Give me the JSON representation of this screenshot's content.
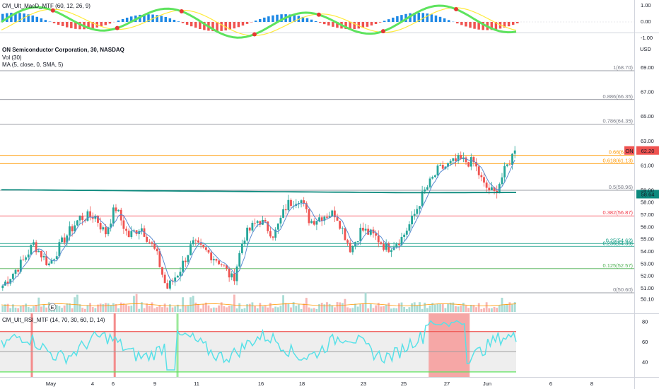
{
  "colors": {
    "up": "#26a69a",
    "down": "#ef5350",
    "ma": "#5b8bd1",
    "ema": "#0d8a7e",
    "rsi": "#58e1e8",
    "macd_fast": "#5ee35e",
    "macd_slow": "#ffeb3b",
    "macd_dot": "#e53935",
    "hist_pos": "#1e88e5",
    "hist_neg": "#ef5350",
    "price_badge": "#ef5350",
    "ema_badge": "#0d8a7e"
  },
  "macd_pane": {
    "legend": "CM_Ult_MacD_MTF (60, 12, 26, 9)",
    "ticks": [
      "1.00",
      "0.00",
      "-1.00"
    ]
  },
  "main_pane": {
    "legend_title": "ON Semiconductor Corporation, 30, NASDAQ",
    "legend_vol": "Vol (30)",
    "legend_ma": "MA (5, close, 0, SMA, 5)",
    "currency": "USD",
    "ticker_badge": "ON",
    "price_badge": "62.20",
    "ema_badge": "58.64",
    "earnings_marker": "E"
  },
  "rsi_pane": {
    "legend": "CM_Ult_RSI_MTF (14, 70, 30, 60, D, 14)",
    "ticks": [
      "80",
      "60",
      "40"
    ]
  },
  "x_axis_labels": [
    "May",
    "4",
    "6",
    "9",
    "11",
    "16",
    "18",
    "23",
    "25",
    "27",
    "Jun",
    "6",
    "8"
  ],
  "chart_data": {
    "type": "candlestick",
    "title": "ON Semiconductor Corporation, 30, NASDAQ",
    "ylabel": "USD",
    "ylim": [
      49.6,
      71.0
    ],
    "yticks": [
      50.1,
      51.0,
      52.0,
      53.0,
      54.0,
      55.0,
      56.0,
      57.0,
      58.0,
      59.0,
      61.0,
      63.0,
      65.0,
      67.0,
      69.0
    ],
    "last_price": 62.2,
    "ema_value": 58.64,
    "ma_label": "MA (5, close, 0, SMA, 5)",
    "close_path": [
      {
        "t": 0,
        "c": 51.2
      },
      {
        "t": 0.04,
        "c": 53.2
      },
      {
        "t": 0.06,
        "c": 54.6
      },
      {
        "t": 0.09,
        "c": 52.9
      },
      {
        "t": 0.12,
        "c": 55.0
      },
      {
        "t": 0.15,
        "c": 56.7
      },
      {
        "t": 0.18,
        "c": 56.9
      },
      {
        "t": 0.2,
        "c": 55.4
      },
      {
        "t": 0.22,
        "c": 57.6
      },
      {
        "t": 0.245,
        "c": 55.2
      },
      {
        "t": 0.27,
        "c": 56.0
      },
      {
        "t": 0.3,
        "c": 53.8
      },
      {
        "t": 0.32,
        "c": 50.9
      },
      {
        "t": 0.345,
        "c": 52.4
      },
      {
        "t": 0.37,
        "c": 54.6
      },
      {
        "t": 0.4,
        "c": 53.9
      },
      {
        "t": 0.425,
        "c": 53.1
      },
      {
        "t": 0.45,
        "c": 51.6
      },
      {
        "t": 0.47,
        "c": 55.1
      },
      {
        "t": 0.5,
        "c": 56.6
      },
      {
        "t": 0.53,
        "c": 55.3
      },
      {
        "t": 0.555,
        "c": 57.8
      },
      {
        "t": 0.58,
        "c": 58.4
      },
      {
        "t": 0.6,
        "c": 56.4
      },
      {
        "t": 0.625,
        "c": 56.9
      },
      {
        "t": 0.65,
        "c": 57.1
      },
      {
        "t": 0.68,
        "c": 54.1
      },
      {
        "t": 0.7,
        "c": 55.8
      },
      {
        "t": 0.73,
        "c": 55.1
      },
      {
        "t": 0.75,
        "c": 54.2
      },
      {
        "t": 0.78,
        "c": 55.1
      },
      {
        "t": 0.8,
        "c": 56.6
      },
      {
        "t": 0.82,
        "c": 58.6
      },
      {
        "t": 0.85,
        "c": 60.6
      },
      {
        "t": 0.87,
        "c": 61.0
      },
      {
        "t": 0.89,
        "c": 61.4
      },
      {
        "t": 0.92,
        "c": 61.2
      },
      {
        "t": 0.94,
        "c": 59.3
      },
      {
        "t": 0.96,
        "c": 58.7
      },
      {
        "t": 0.98,
        "c": 60.5
      },
      {
        "t": 1.0,
        "c": 62.2
      }
    ],
    "fib_levels": [
      {
        "label": "1(68.70)",
        "value": 68.7,
        "color": "#787b86"
      },
      {
        "label": "0.886(66.35)",
        "value": 66.35,
        "color": "#787b86"
      },
      {
        "label": "0.786(64.35)",
        "value": 64.35,
        "color": "#787b86"
      },
      {
        "label": "0.66(61.8)",
        "value": 61.8,
        "color": "#ff9800"
      },
      {
        "label": "0.618(61.13)",
        "value": 61.13,
        "color": "#ff9800"
      },
      {
        "label": "0.5(58.96)",
        "value": 58.96,
        "color": "#787b86"
      },
      {
        "label": "0.382(56.87)",
        "value": 56.87,
        "color": "#f23645"
      },
      {
        "label": "0.25(54.62)",
        "value": 54.62,
        "color": "#089981"
      },
      {
        "label": "0.236(54.39)",
        "value": 54.39,
        "color": "#089981"
      },
      {
        "label": "0.125(52.57)",
        "value": 52.57,
        "color": "#4caf50"
      },
      {
        "label": "0(50.60)",
        "value": 50.6,
        "color": "#787b86"
      }
    ]
  }
}
